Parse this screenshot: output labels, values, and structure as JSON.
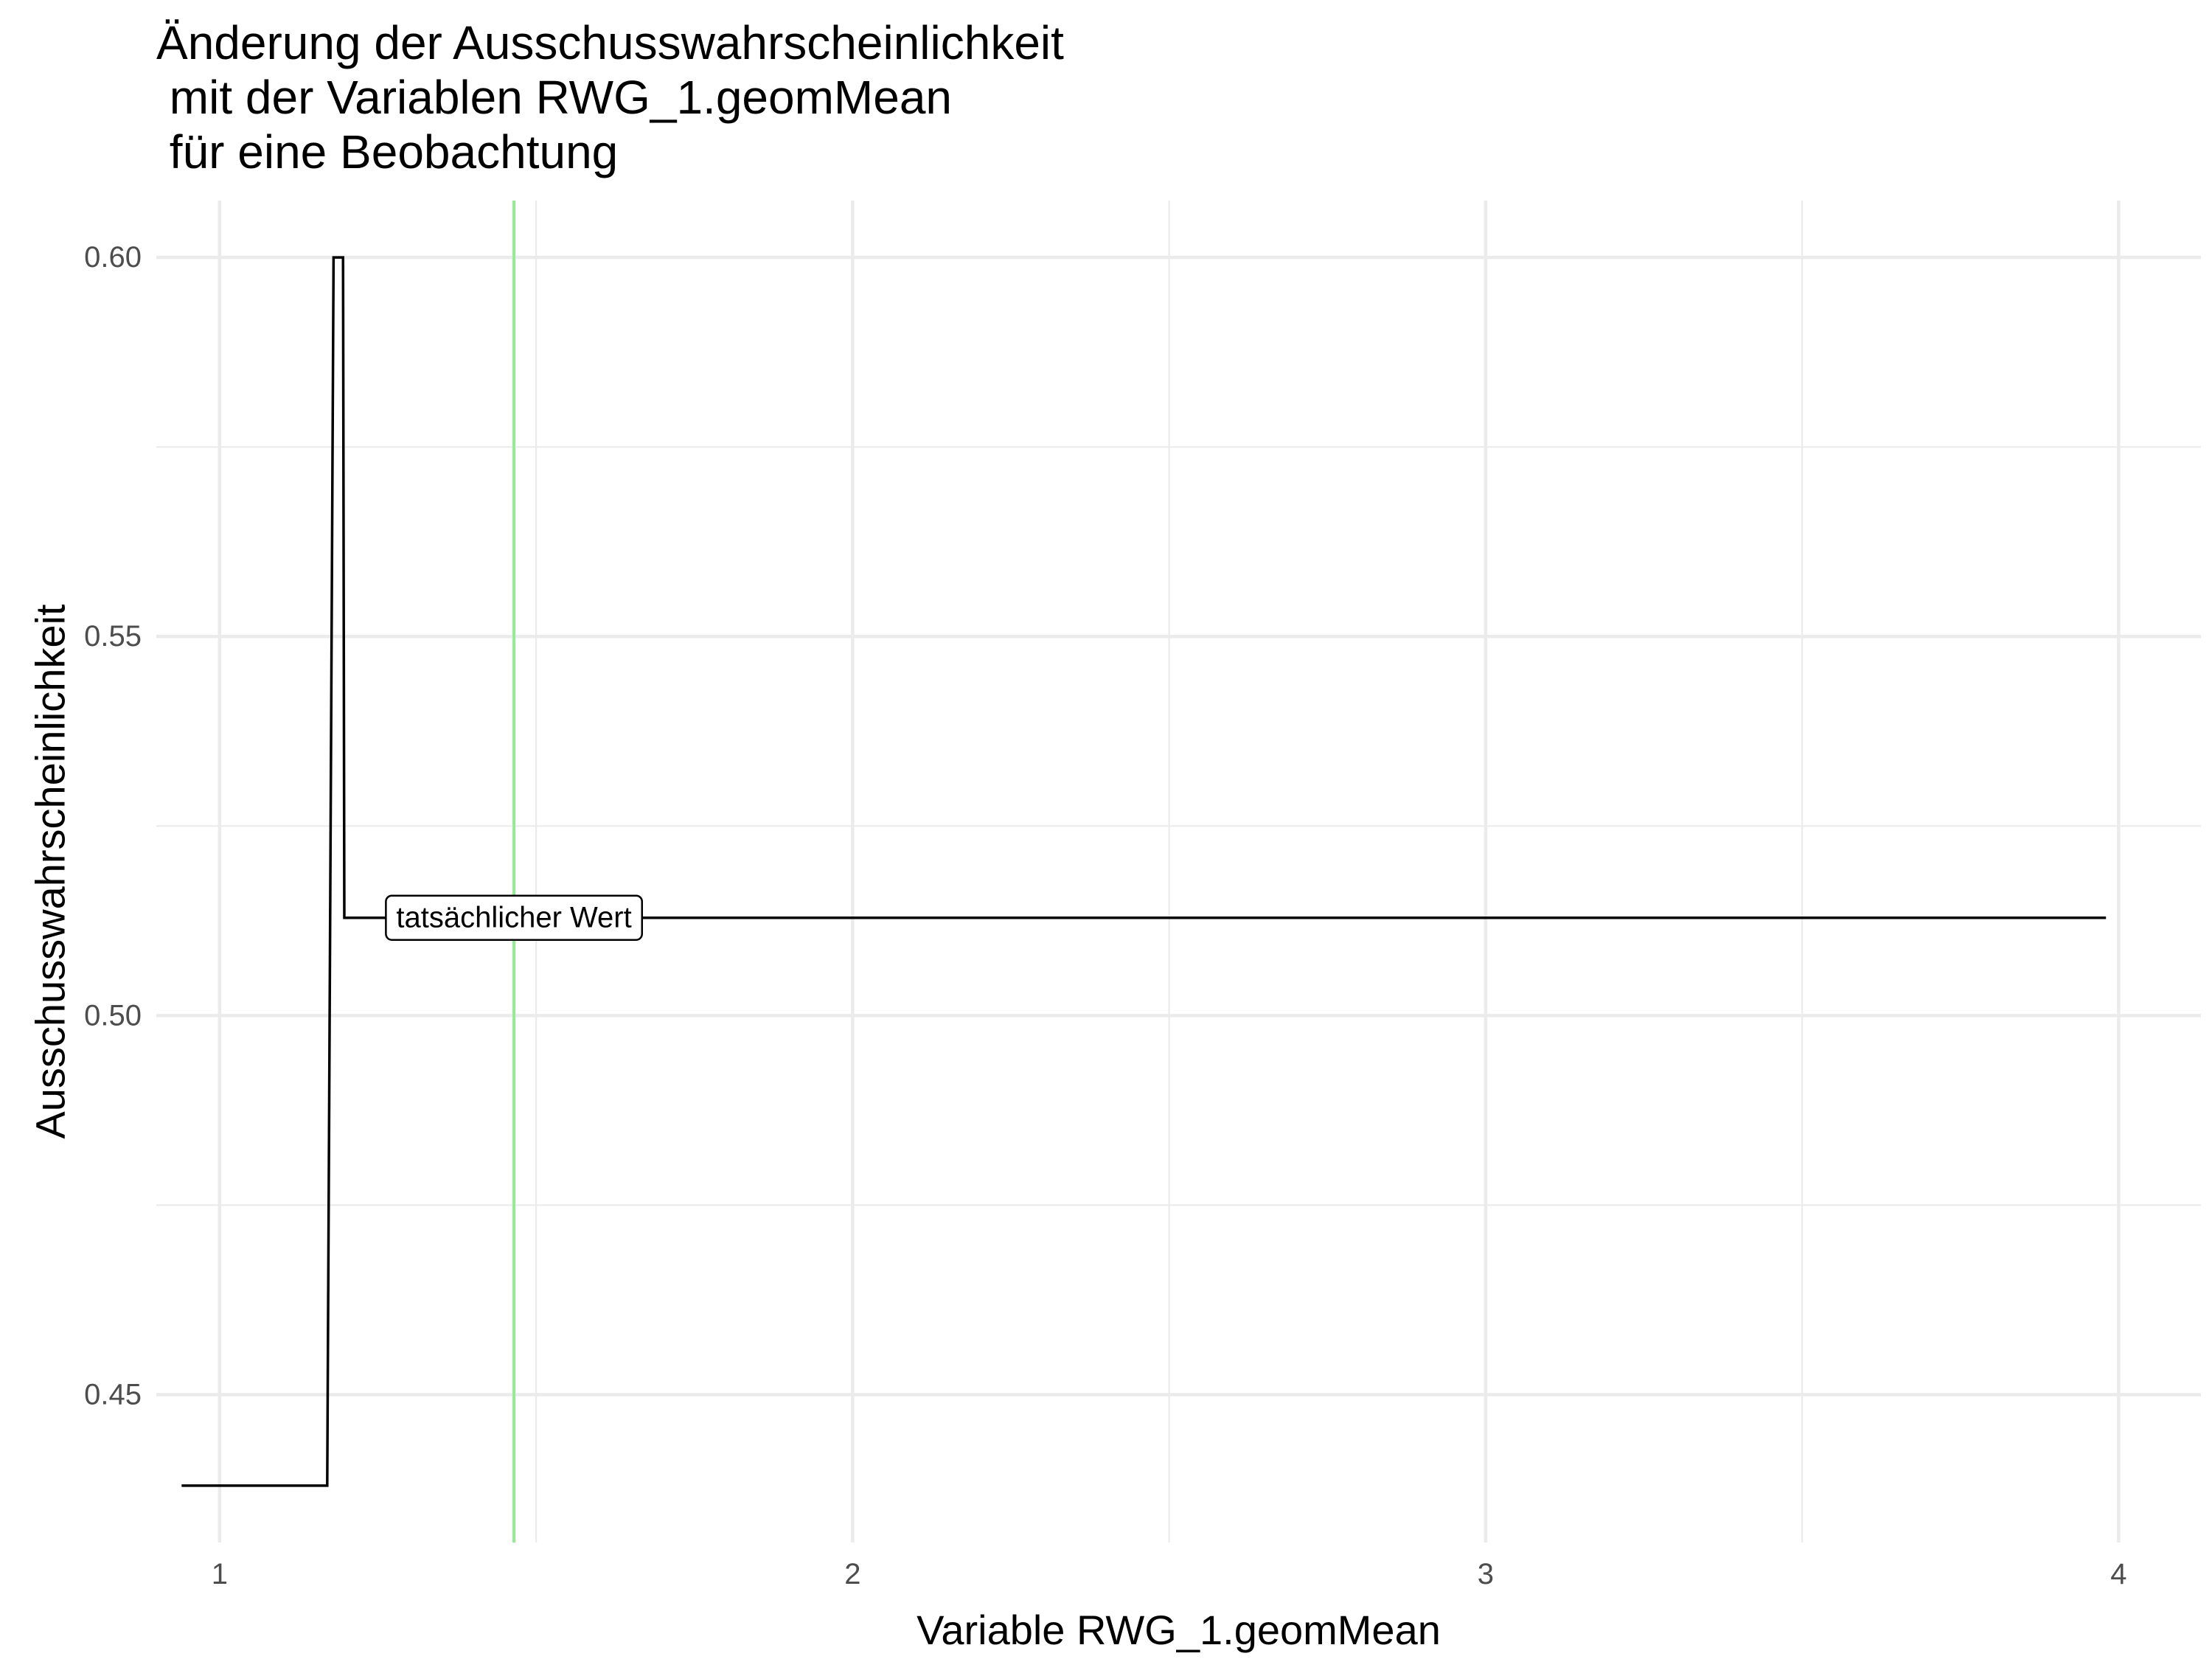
{
  "chart_data": {
    "type": "line",
    "title_lines": [
      "Änderung der Ausschusswahrscheinlichkeit",
      " mit der Variablen RWG_1.geomMean",
      " für eine Beobachtung"
    ],
    "xlabel": "Variable RWG_1.geomMean",
    "ylabel": "Ausschusswahrscheinlichkeit",
    "xlim": [
      0.9,
      4.13
    ],
    "ylim": [
      0.4305,
      0.6075
    ],
    "x_major_ticks": [
      1,
      2,
      3,
      4
    ],
    "x_tick_labels": [
      "1",
      "2",
      "3",
      "4"
    ],
    "x_minor_ticks": [
      1.5,
      2.5,
      3.5
    ],
    "y_major_ticks": [
      0.45,
      0.5,
      0.55,
      0.6
    ],
    "y_tick_labels": [
      "0.45",
      "0.50",
      "0.55",
      "0.60"
    ],
    "y_minor_ticks": [
      0.475,
      0.525,
      0.575
    ],
    "grid": true,
    "series": [
      {
        "color": "#000000",
        "points": [
          [
            0.94,
            0.438
          ],
          [
            1.17,
            0.438
          ],
          [
            1.18,
            0.6
          ],
          [
            1.195,
            0.6
          ],
          [
            1.197,
            0.5129
          ],
          [
            3.98,
            0.5129
          ]
        ]
      }
    ],
    "reference_line": {
      "x": 1.465,
      "color": "#90ee90"
    },
    "annotation": {
      "text": "tatsächlicher Wert",
      "x": 1.465,
      "y": 0.5129
    }
  }
}
